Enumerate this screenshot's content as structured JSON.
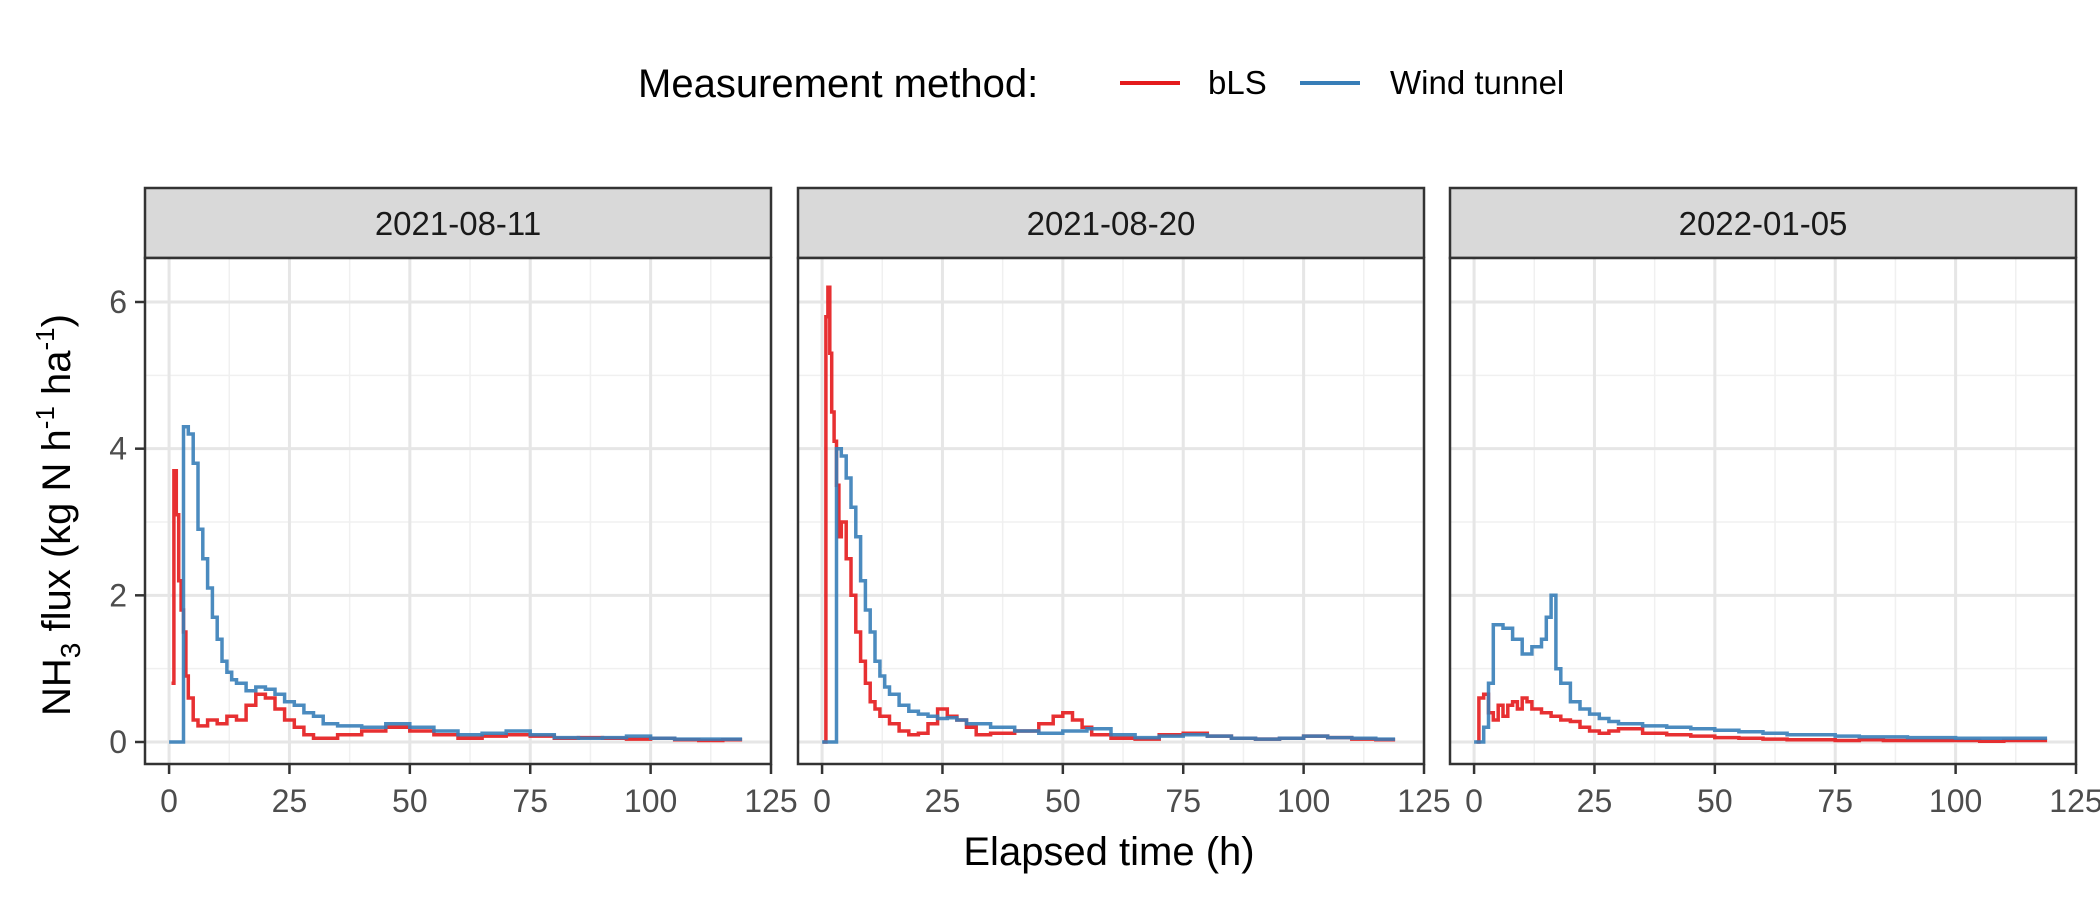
{
  "chart_data": {
    "type": "line",
    "step": true,
    "facet_by": "date",
    "legend": {
      "title": "Measurement method:",
      "position": "top"
    },
    "xlabel": "Elapsed time (h)",
    "ylabel_parts": {
      "pre": "NH",
      "sub": "3",
      "mid": " flux (kg N h",
      "sup1": "-1",
      "mid2": " ha",
      "sup2": "-1",
      "post": ")"
    },
    "xlim": [
      -5,
      125
    ],
    "ylim": [
      -0.3,
      6.6
    ],
    "x_ticks": [
      0,
      25,
      50,
      75,
      100,
      125
    ],
    "y_ticks": [
      0,
      2,
      4,
      6
    ],
    "grid": true,
    "series_styles": [
      {
        "name": "bLS",
        "color": "#e41a1c"
      },
      {
        "name": "Wind tunnel",
        "color": "#377eb8"
      }
    ],
    "panels": [
      {
        "label": "2021-08-11",
        "series": [
          {
            "name": "bLS",
            "x": [
              0.5,
              1,
              1.5,
              2,
              2.5,
              3,
              3.5,
              4,
              5,
              6,
              8,
              10,
              12,
              14,
              16,
              18,
              20,
              22,
              24,
              26,
              28,
              30,
              35,
              40,
              45,
              50,
              55,
              60,
              65,
              70,
              75,
              80,
              85,
              90,
              95,
              100,
              105,
              110,
              115,
              119
            ],
            "y": [
              0.8,
              3.7,
              3.1,
              2.2,
              1.8,
              1.5,
              0.9,
              0.6,
              0.3,
              0.22,
              0.3,
              0.25,
              0.35,
              0.3,
              0.5,
              0.65,
              0.6,
              0.45,
              0.3,
              0.2,
              0.1,
              0.05,
              0.1,
              0.15,
              0.2,
              0.15,
              0.1,
              0.05,
              0.08,
              0.1,
              0.08,
              0.05,
              0.06,
              0.05,
              0.04,
              0.05,
              0.03,
              0.02,
              0.03,
              0.03
            ]
          },
          {
            "name": "Wind tunnel",
            "x": [
              0,
              2,
              3,
              4,
              5,
              6,
              7,
              8,
              9,
              10,
              11,
              12,
              13,
              14,
              16,
              18,
              20,
              22,
              24,
              26,
              28,
              30,
              32,
              35,
              40,
              45,
              50,
              55,
              60,
              65,
              70,
              75,
              80,
              85,
              90,
              95,
              100,
              105,
              110,
              115,
              119
            ],
            "y": [
              0,
              0,
              4.3,
              4.2,
              3.8,
              2.9,
              2.5,
              2.1,
              1.7,
              1.4,
              1.1,
              0.95,
              0.85,
              0.8,
              0.7,
              0.75,
              0.72,
              0.65,
              0.55,
              0.5,
              0.4,
              0.35,
              0.25,
              0.22,
              0.2,
              0.25,
              0.2,
              0.15,
              0.1,
              0.12,
              0.15,
              0.1,
              0.06,
              0.05,
              0.06,
              0.08,
              0.05,
              0.04,
              0.04,
              0.04,
              0.04
            ]
          }
        ]
      },
      {
        "label": "2021-08-20",
        "series": [
          {
            "name": "bLS",
            "x": [
              0.2,
              0.8,
              1.2,
              1.6,
              2,
              2.5,
              3,
              3.5,
              4,
              5,
              6,
              7,
              8,
              9,
              10,
              11,
              12,
              14,
              16,
              18,
              20,
              22,
              24,
              26,
              28,
              30,
              32,
              35,
              40,
              45,
              48,
              50,
              52,
              54,
              56,
              60,
              65,
              70,
              75,
              80,
              85,
              90,
              95,
              100,
              105,
              110,
              115,
              119
            ],
            "y": [
              0,
              5.8,
              6.2,
              5.3,
              4.5,
              4.1,
              3.5,
              2.8,
              3.0,
              2.5,
              2.0,
              1.5,
              1.1,
              0.8,
              0.55,
              0.45,
              0.35,
              0.25,
              0.15,
              0.1,
              0.12,
              0.25,
              0.45,
              0.35,
              0.3,
              0.2,
              0.1,
              0.12,
              0.15,
              0.25,
              0.35,
              0.4,
              0.3,
              0.2,
              0.1,
              0.05,
              0.04,
              0.1,
              0.12,
              0.08,
              0.05,
              0.04,
              0.05,
              0.08,
              0.06,
              0.04,
              0.03,
              0.03
            ]
          },
          {
            "name": "Wind tunnel",
            "x": [
              0,
              2,
              3,
              4,
              5,
              6,
              7,
              8,
              9,
              10,
              11,
              12,
              13,
              14,
              16,
              18,
              20,
              22,
              24,
              26,
              28,
              30,
              35,
              40,
              45,
              50,
              55,
              60,
              65,
              70,
              75,
              80,
              85,
              90,
              95,
              100,
              105,
              110,
              115,
              119
            ],
            "y": [
              0,
              0,
              4.0,
              3.9,
              3.6,
              3.2,
              2.8,
              2.2,
              1.8,
              1.5,
              1.1,
              0.9,
              0.75,
              0.65,
              0.5,
              0.42,
              0.38,
              0.35,
              0.32,
              0.33,
              0.3,
              0.25,
              0.2,
              0.15,
              0.12,
              0.15,
              0.18,
              0.1,
              0.06,
              0.08,
              0.1,
              0.08,
              0.05,
              0.04,
              0.05,
              0.08,
              0.06,
              0.05,
              0.04,
              0.04
            ]
          }
        ]
      },
      {
        "label": "2022-01-05",
        "series": [
          {
            "name": "bLS",
            "x": [
              0.5,
              1,
              2,
              3,
              4,
              5,
              6,
              7,
              8,
              9,
              10,
              11,
              12,
              14,
              16,
              18,
              20,
              22,
              24,
              26,
              28,
              30,
              35,
              40,
              45,
              50,
              55,
              60,
              65,
              70,
              75,
              80,
              85,
              90,
              95,
              100,
              105,
              110,
              115,
              119
            ],
            "y": [
              0,
              0.6,
              0.65,
              0.4,
              0.3,
              0.5,
              0.35,
              0.5,
              0.55,
              0.45,
              0.6,
              0.55,
              0.45,
              0.4,
              0.35,
              0.3,
              0.28,
              0.2,
              0.15,
              0.12,
              0.15,
              0.18,
              0.12,
              0.1,
              0.08,
              0.06,
              0.05,
              0.04,
              0.03,
              0.03,
              0.02,
              0.03,
              0.02,
              0.02,
              0.02,
              0.02,
              0.01,
              0.02,
              0.02,
              0.02
            ]
          },
          {
            "name": "Wind tunnel",
            "x": [
              0,
              2,
              3,
              4,
              6,
              8,
              10,
              12,
              14,
              15,
              16,
              17,
              18,
              20,
              22,
              24,
              26,
              28,
              30,
              35,
              40,
              45,
              50,
              55,
              60,
              65,
              70,
              75,
              80,
              85,
              90,
              95,
              100,
              105,
              110,
              115,
              119
            ],
            "y": [
              0,
              0.2,
              0.8,
              1.6,
              1.55,
              1.4,
              1.2,
              1.3,
              1.4,
              1.7,
              2.0,
              1.0,
              0.8,
              0.55,
              0.45,
              0.38,
              0.32,
              0.28,
              0.25,
              0.22,
              0.2,
              0.18,
              0.16,
              0.14,
              0.12,
              0.1,
              0.1,
              0.08,
              0.07,
              0.07,
              0.06,
              0.06,
              0.05,
              0.05,
              0.05,
              0.05,
              0.05
            ]
          }
        ]
      }
    ]
  }
}
